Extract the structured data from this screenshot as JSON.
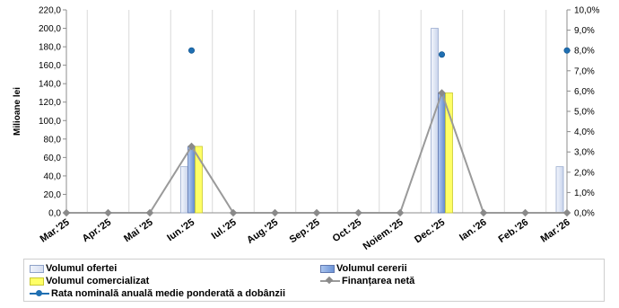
{
  "chart_data": {
    "type": "bar",
    "categories": [
      "Mar.'25",
      "Apr.'25",
      "Mai '25",
      "Iun.'25",
      "Iul.'25",
      "Aug.'25",
      "Sep.'25",
      "Oct.'25",
      "Noiem.'25",
      "Dec.'25",
      "Ian.'26",
      "Feb.'26",
      "Mar.'26"
    ],
    "ylabel": "Milioane lei",
    "ylim": [
      0,
      220
    ],
    "y_ticks": [
      "0,0",
      "20,0",
      "40,0",
      "60,0",
      "80,0",
      "100,0",
      "120,0",
      "140,0",
      "160,0",
      "180,0",
      "200,0",
      "220,0"
    ],
    "y2lim": [
      0,
      10
    ],
    "y2_ticks": [
      "0,0%",
      "1,0%",
      "2,0%",
      "3,0%",
      "4,0%",
      "5,0%",
      "6,0%",
      "7,0%",
      "8,0%",
      "9,0%",
      "10,0%"
    ],
    "grid": "horizontal-none, vertical-lines",
    "legend_position": "bottom",
    "series": [
      {
        "name": "Volumul ofertei",
        "kind": "bar",
        "axis": "left",
        "color": "#dde5f4",
        "values": [
          0,
          0,
          0,
          50,
          0,
          0,
          0,
          0,
          0,
          200,
          0,
          0,
          50
        ]
      },
      {
        "name": "Volumul cererii",
        "kind": "bar",
        "axis": "left",
        "color": "#7ea1dd",
        "values": [
          0,
          0,
          0,
          72,
          0,
          0,
          0,
          0,
          0,
          130,
          0,
          0,
          0
        ]
      },
      {
        "name": "Volumul comercializat",
        "kind": "bar",
        "axis": "left",
        "color": "#ffff66",
        "values": [
          0,
          0,
          0,
          72,
          0,
          0,
          0,
          0,
          0,
          130,
          0,
          0,
          0
        ]
      },
      {
        "name": "Finanțarea netă",
        "kind": "line",
        "axis": "left",
        "color": "#9a9a9a",
        "values": [
          0,
          0,
          0,
          72,
          0,
          0,
          0,
          0,
          0,
          130,
          0,
          0,
          0
        ]
      },
      {
        "name": "Rata nominală anuală medie ponderată a dobânzii",
        "kind": "point",
        "axis": "right",
        "color": "#1f6fb2",
        "values": [
          null,
          null,
          null,
          8.0,
          null,
          null,
          null,
          null,
          null,
          7.8,
          null,
          null,
          8.0
        ]
      }
    ]
  }
}
